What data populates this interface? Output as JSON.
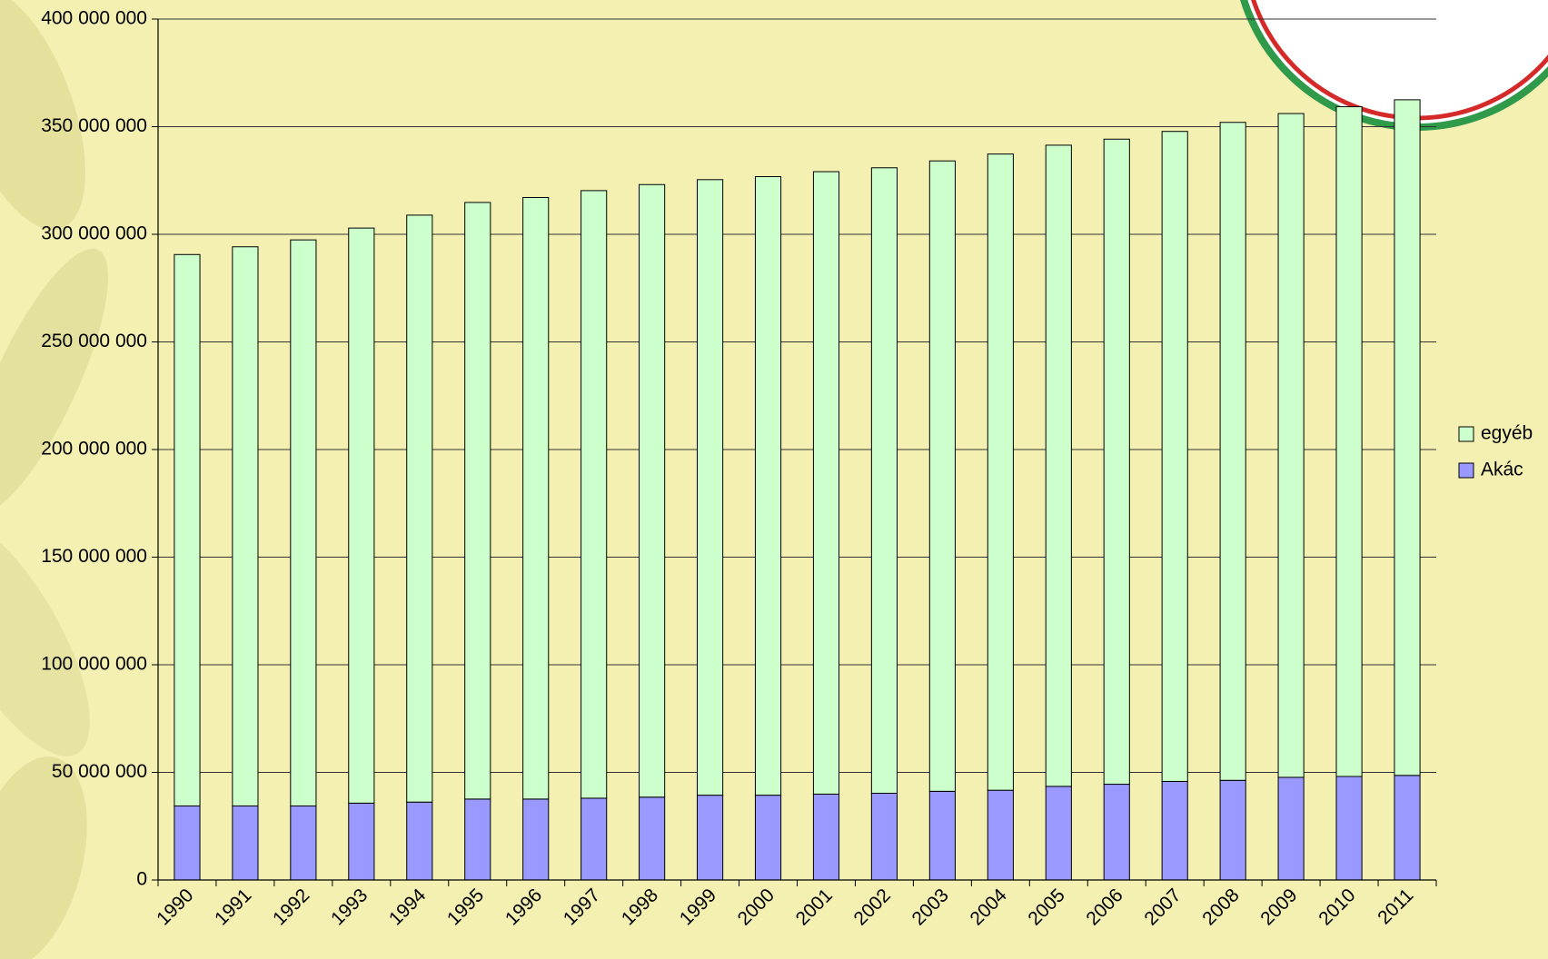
{
  "chart_data": {
    "type": "bar",
    "stacked": true,
    "categories": [
      "1990",
      "1991",
      "1992",
      "1993",
      "1994",
      "1995",
      "1996",
      "1997",
      "1998",
      "1999",
      "2000",
      "2001",
      "2002",
      "2003",
      "2004",
      "2005",
      "2006",
      "2007",
      "2008",
      "2009",
      "2010",
      "2011"
    ],
    "series": [
      {
        "name": "Akác",
        "color": "#9999ff",
        "values": [
          34400000,
          34400000,
          34400000,
          35700000,
          36200000,
          37600000,
          37600000,
          38000000,
          38500000,
          39400000,
          39400000,
          39900000,
          40300000,
          41200000,
          41700000,
          43500000,
          44500000,
          45800000,
          46300000,
          47700000,
          48100000,
          48600000
        ]
      },
      {
        "name": "egyéb",
        "color": "#ccffcc",
        "values": [
          256200000,
          259800000,
          263000000,
          267200000,
          272700000,
          277200000,
          279500000,
          282300000,
          284600000,
          286000000,
          287400000,
          289200000,
          290600000,
          292900000,
          295600000,
          297900000,
          299700000,
          302000000,
          305700000,
          308400000,
          311200000,
          313900000
        ]
      }
    ],
    "ylim": [
      0,
      400000000
    ],
    "yticks": [
      0,
      {
        "value": 50000000,
        "label": "50 000 000"
      },
      {
        "value": 100000000,
        "label": "100 000 000"
      },
      {
        "value": 150000000,
        "label": "150 000 000"
      },
      {
        "value": 200000000,
        "label": "200 000 000"
      },
      {
        "value": 250000000,
        "label": "250 000 000"
      },
      {
        "value": 300000000,
        "label": "300 000 000"
      },
      {
        "value": 350000000,
        "label": "350 000 000"
      },
      {
        "value": 400000000,
        "label": "400 000 000"
      }
    ],
    "grid": true,
    "legend": "right"
  }
}
